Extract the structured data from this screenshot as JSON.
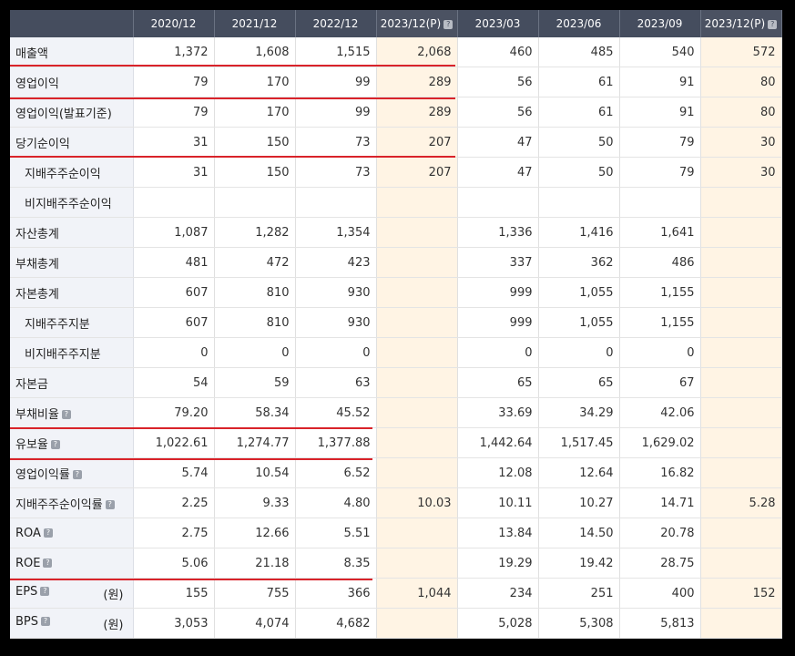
{
  "header": {
    "columns": [
      {
        "label": "2020/12",
        "help": false,
        "estimate": false
      },
      {
        "label": "2021/12",
        "help": false,
        "estimate": false
      },
      {
        "label": "2022/12",
        "help": false,
        "estimate": false
      },
      {
        "label": "2023/12(P)",
        "help": true,
        "estimate": true
      },
      {
        "label": "2023/03",
        "help": false,
        "estimate": false
      },
      {
        "label": "2023/06",
        "help": false,
        "estimate": false
      },
      {
        "label": "2023/09",
        "help": false,
        "estimate": false
      },
      {
        "label": "2023/12(P)",
        "help": true,
        "estimate": true
      }
    ]
  },
  "rows": [
    {
      "label": "매출액",
      "sub": false,
      "help": false,
      "unit": "",
      "values": [
        "1,372",
        "1,608",
        "1,515",
        "2,068",
        "460",
        "485",
        "540",
        "572"
      ]
    },
    {
      "label": "영업이익",
      "sub": false,
      "help": false,
      "unit": "",
      "values": [
        "79",
        "170",
        "99",
        "289",
        "56",
        "61",
        "91",
        "80"
      ]
    },
    {
      "label": "영업이익(발표기준)",
      "sub": false,
      "help": false,
      "unit": "",
      "values": [
        "79",
        "170",
        "99",
        "289",
        "56",
        "61",
        "91",
        "80"
      ]
    },
    {
      "label": "당기순이익",
      "sub": false,
      "help": false,
      "unit": "",
      "values": [
        "31",
        "150",
        "73",
        "207",
        "47",
        "50",
        "79",
        "30"
      ]
    },
    {
      "label": "지배주주순이익",
      "sub": true,
      "help": false,
      "unit": "",
      "values": [
        "31",
        "150",
        "73",
        "207",
        "47",
        "50",
        "79",
        "30"
      ]
    },
    {
      "label": "비지배주주순이익",
      "sub": true,
      "help": false,
      "unit": "",
      "values": [
        "",
        "",
        "",
        "",
        "",
        "",
        "",
        ""
      ]
    },
    {
      "label": "자산총계",
      "sub": false,
      "help": false,
      "unit": "",
      "values": [
        "1,087",
        "1,282",
        "1,354",
        "",
        "1,336",
        "1,416",
        "1,641",
        ""
      ]
    },
    {
      "label": "부채총계",
      "sub": false,
      "help": false,
      "unit": "",
      "values": [
        "481",
        "472",
        "423",
        "",
        "337",
        "362",
        "486",
        ""
      ]
    },
    {
      "label": "자본총계",
      "sub": false,
      "help": false,
      "unit": "",
      "values": [
        "607",
        "810",
        "930",
        "",
        "999",
        "1,055",
        "1,155",
        ""
      ]
    },
    {
      "label": "지배주주지분",
      "sub": true,
      "help": false,
      "unit": "",
      "values": [
        "607",
        "810",
        "930",
        "",
        "999",
        "1,055",
        "1,155",
        ""
      ]
    },
    {
      "label": "비지배주주지분",
      "sub": true,
      "help": false,
      "unit": "",
      "values": [
        "0",
        "0",
        "0",
        "",
        "0",
        "0",
        "0",
        ""
      ]
    },
    {
      "label": "자본금",
      "sub": false,
      "help": false,
      "unit": "",
      "values": [
        "54",
        "59",
        "63",
        "",
        "65",
        "65",
        "67",
        ""
      ]
    },
    {
      "label": "부채비율",
      "sub": false,
      "help": true,
      "unit": "",
      "values": [
        "79.20",
        "58.34",
        "45.52",
        "",
        "33.69",
        "34.29",
        "42.06",
        ""
      ]
    },
    {
      "label": "유보율",
      "sub": false,
      "help": true,
      "unit": "",
      "values": [
        "1,022.61",
        "1,274.77",
        "1,377.88",
        "",
        "1,442.64",
        "1,517.45",
        "1,629.02",
        ""
      ]
    },
    {
      "label": "영업이익률",
      "sub": false,
      "help": true,
      "unit": "",
      "values": [
        "5.74",
        "10.54",
        "6.52",
        "",
        "12.08",
        "12.64",
        "16.82",
        ""
      ]
    },
    {
      "label": "지배주주순이익률",
      "sub": false,
      "help": true,
      "unit": "",
      "values": [
        "2.25",
        "9.33",
        "4.80",
        "10.03",
        "10.11",
        "10.27",
        "14.71",
        "5.28"
      ]
    },
    {
      "label": "ROA",
      "sub": false,
      "help": true,
      "unit": "",
      "values": [
        "2.75",
        "12.66",
        "5.51",
        "",
        "13.84",
        "14.50",
        "20.78",
        ""
      ]
    },
    {
      "label": "ROE",
      "sub": false,
      "help": true,
      "unit": "",
      "values": [
        "5.06",
        "21.18",
        "8.35",
        "",
        "19.29",
        "19.42",
        "28.75",
        ""
      ]
    },
    {
      "label": "EPS",
      "sub": false,
      "help": true,
      "unit": "(원)",
      "values": [
        "155",
        "755",
        "366",
        "1,044",
        "234",
        "251",
        "400",
        "152"
      ]
    },
    {
      "label": "BPS",
      "sub": false,
      "help": true,
      "unit": "(원)",
      "values": [
        "3,053",
        "4,074",
        "4,682",
        "",
        "5,028",
        "5,308",
        "5,813",
        ""
      ]
    }
  ],
  "help_glyph": "?",
  "colors": {
    "header_bg": "#454d5e",
    "estimate_bg": "#fff4e4",
    "highlight_line": "#d9232a"
  }
}
